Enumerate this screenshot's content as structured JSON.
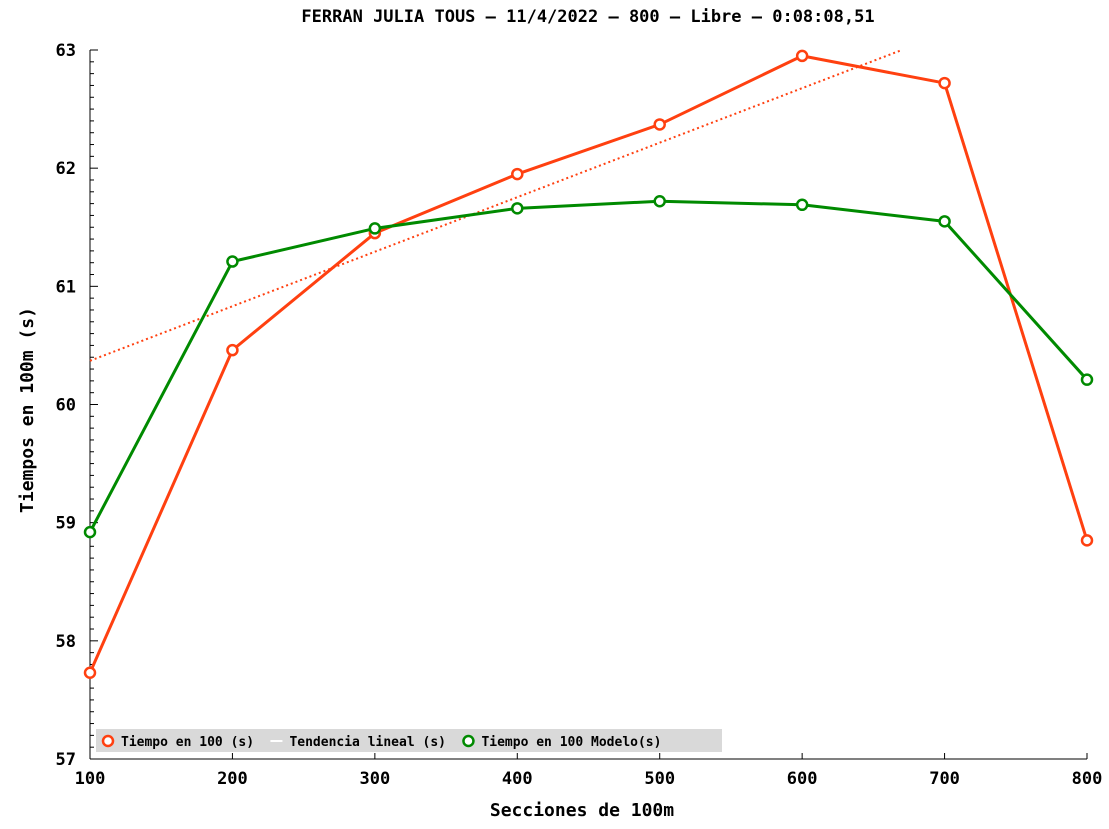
{
  "chart_data": {
    "type": "line",
    "title": "FERRAN JULIA TOUS – 11/4/2022 – 800 – Libre – 0:08:08,51",
    "xlabel": "Secciones de 100m",
    "ylabel": "Tiempos en 100m (s)",
    "x": [
      100,
      200,
      300,
      400,
      500,
      600,
      700,
      800
    ],
    "x_ticks": [
      "100",
      "200",
      "300",
      "400",
      "500",
      "600",
      "700",
      "800"
    ],
    "y_ticks": [
      "57",
      "58",
      "59",
      "60",
      "61",
      "62",
      "63"
    ],
    "xlim": [
      100,
      800
    ],
    "ylim": [
      57,
      63
    ],
    "grid": false,
    "legend_position": "bottom-left",
    "series": [
      {
        "name": "Tiempo en 100 (s)",
        "color": "#ff4010",
        "marker": "circle",
        "values": [
          57.73,
          60.46,
          61.45,
          61.95,
          62.37,
          62.95,
          62.72,
          58.85
        ]
      },
      {
        "name": "Tendencia lineal (s)",
        "color": "#ff4010",
        "style": "dotted",
        "x": [
          100,
          670
        ],
        "values": [
          60.37,
          63.0
        ]
      },
      {
        "name": "Tiempo en 100 Modelo(s)",
        "color": "#008a00",
        "marker": "circle",
        "values": [
          58.92,
          61.21,
          61.49,
          61.66,
          61.72,
          61.69,
          61.55,
          60.21
        ]
      }
    ]
  }
}
